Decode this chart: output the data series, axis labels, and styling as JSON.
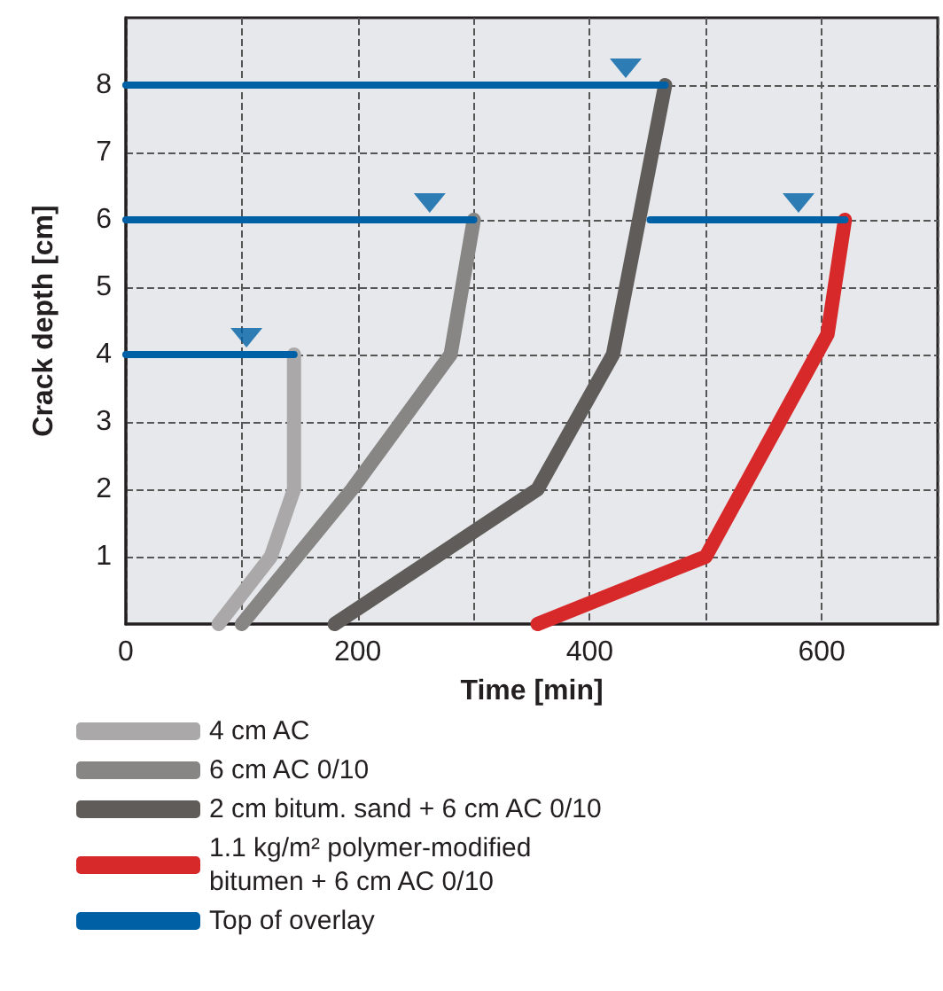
{
  "chart_data": {
    "type": "line",
    "xlabel": "Time [min]",
    "ylabel": "Crack depth [cm]",
    "xlim": [
      0,
      700
    ],
    "xticks": [
      0,
      {
        "value": 100,
        "label": null
      },
      200,
      {
        "value": 300,
        "label": null
      },
      400,
      {
        "value": 500,
        "label": null
      },
      600,
      {
        "value": 700,
        "label": null
      }
    ],
    "ylim": [
      0,
      9
    ],
    "yticks": [
      1,
      2,
      3,
      4,
      5,
      6,
      7,
      8
    ],
    "grid": true,
    "legend": "bottom left",
    "marker": "none",
    "line_style": "solid",
    "series": [
      {
        "name": "4 cm AC",
        "color": "#aaa8a8",
        "x": [
          80,
          125,
          145,
          145
        ],
        "values": [
          0,
          1,
          2,
          4
        ]
      },
      {
        "name": "6 cm AC 0/10",
        "color": "#878685",
        "x": [
          100,
          195,
          280,
          300
        ],
        "values": [
          0,
          2,
          4,
          6
        ]
      },
      {
        "name": "2 cm bitum. sand + 6 cm AC 0/10",
        "color": "#5f5c5a",
        "x": [
          180,
          355,
          420,
          465
        ],
        "values": [
          0,
          2,
          4,
          8
        ]
      },
      {
        "name": "1.1 kg/m² polymer-modified bitumen + 6 cm AC 0/10",
        "color": "#d7282a",
        "x": [
          355,
          500,
          605,
          620
        ],
        "values": [
          0,
          1,
          4.3,
          6
        ]
      },
      {
        "name": "Top of overlay",
        "color": "#0060a6",
        "x": [
          0,
          465
        ],
        "values": [
          8,
          8
        ]
      },
      {
        "color": "#0060a6",
        "x": [
          0,
          300
        ],
        "values": [
          6,
          6
        ]
      },
      {
        "color": "#0060a6",
        "x": [
          452,
          620
        ],
        "values": [
          6,
          6
        ]
      },
      {
        "color": "#0060a6",
        "x": [
          0,
          145
        ],
        "values": [
          4,
          4
        ]
      },
      {
        "type": "scatter",
        "marker": "triangle",
        "color": "#0060a6",
        "x": [
          431,
          262,
          580,
          104
        ],
        "values": [
          8.25,
          6.25,
          6.25,
          4.25
        ]
      }
    ]
  }
}
